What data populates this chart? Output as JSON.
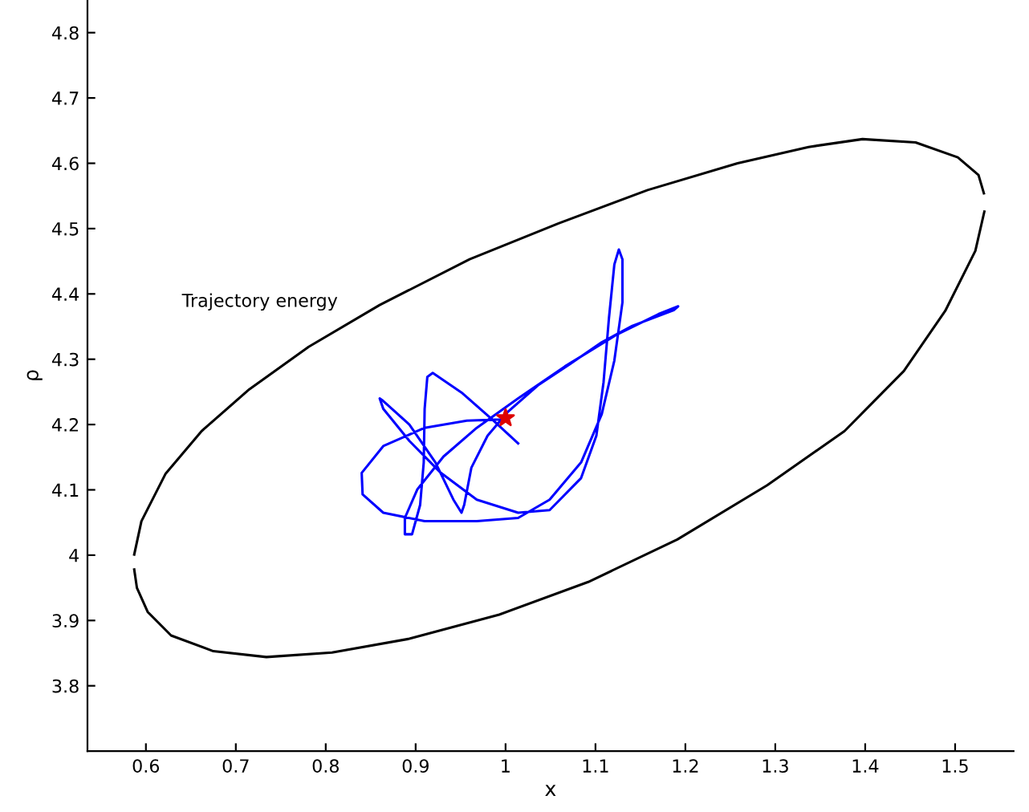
{
  "chart_data": {
    "type": "line",
    "xlabel": "x",
    "ylabel": "ρ",
    "xlim": [
      0.535,
      1.565
    ],
    "ylim": [
      3.7,
      4.85
    ],
    "xticks": [
      0.6,
      0.7,
      0.8,
      0.9,
      1,
      1.1,
      1.2,
      1.3,
      1.4,
      1.5
    ],
    "yticks": [
      3.8,
      3.9,
      4,
      4.1,
      4.2,
      4.3,
      4.4,
      4.5,
      4.6,
      4.7,
      4.8
    ],
    "grid": false,
    "legend": false,
    "marker": "none",
    "line_style": "solid",
    "annotations": [
      "Trajectory energy"
    ],
    "series": [
      {
        "color": "#000000",
        "x": [
          1.5325,
          1.5225,
          1.489,
          1.443,
          1.377,
          1.291,
          1.191,
          1.092,
          0.993,
          0.893,
          0.807,
          0.734,
          0.675,
          0.628,
          0.602,
          0.59,
          0.587,
          null,
          0.587,
          0.595,
          0.622,
          0.662,
          0.715,
          0.781,
          0.86,
          0.96,
          1.059,
          1.158,
          1.258,
          1.337,
          1.397,
          1.456,
          1.503,
          1.526,
          1.532
        ],
        "values": [
          4.526,
          4.466,
          4.374,
          4.282,
          4.19,
          4.107,
          4.024,
          3.959,
          3.909,
          3.872,
          3.851,
          3.844,
          3.853,
          3.877,
          3.913,
          3.95,
          3.978,
          null,
          4.001,
          4.052,
          4.125,
          4.19,
          4.254,
          4.319,
          4.383,
          4.453,
          4.508,
          4.559,
          4.6,
          4.625,
          4.637,
          4.632,
          4.609,
          4.582,
          4.554
        ]
      },
      {
        "color": "#0000ff",
        "x": [
          1.014,
          0.985,
          0.951,
          0.919,
          0.913,
          0.91,
          0.909,
          0.905,
          0.896,
          0.888,
          0.888,
          0.902,
          0.931,
          0.968,
          1.014,
          1.066,
          1.124,
          1.17,
          1.192,
          1.187,
          1.141,
          1.107,
          1.072,
          1.037,
          1.003,
          0.98,
          0.962,
          0.954,
          0.951,
          0.942,
          0.922,
          0.893,
          0.864,
          0.86,
          0.864,
          0.893,
          0.928,
          0.968,
          1.014,
          1.049,
          1.084,
          1.101,
          1.109,
          1.115,
          1.121,
          1.126,
          1.13,
          1.13,
          1.121,
          1.107,
          1.084,
          1.049,
          1.014,
          0.968,
          0.91,
          0.864,
          0.841,
          0.84,
          0.864,
          0.91,
          0.957,
          1.0
        ],
        "values": [
          4.171,
          4.208,
          4.249,
          4.279,
          4.273,
          4.224,
          4.142,
          4.077,
          4.032,
          4.032,
          4.057,
          4.101,
          4.151,
          4.195,
          4.24,
          4.289,
          4.338,
          4.369,
          4.381,
          4.375,
          4.351,
          4.326,
          4.293,
          4.261,
          4.22,
          4.183,
          4.134,
          4.077,
          4.065,
          4.085,
          4.142,
          4.2,
          4.236,
          4.24,
          4.224,
          4.175,
          4.126,
          4.085,
          4.065,
          4.069,
          4.118,
          4.183,
          4.265,
          4.363,
          4.445,
          4.468,
          4.453,
          4.387,
          4.298,
          4.216,
          4.142,
          4.085,
          4.057,
          4.052,
          4.052,
          4.065,
          4.093,
          4.126,
          4.167,
          4.195,
          4.206,
          4.208
        ]
      },
      {
        "type": "scatter",
        "marker": "star",
        "color": "#dd0000",
        "x": [
          1.0
        ],
        "values": [
          4.21
        ]
      }
    ]
  }
}
